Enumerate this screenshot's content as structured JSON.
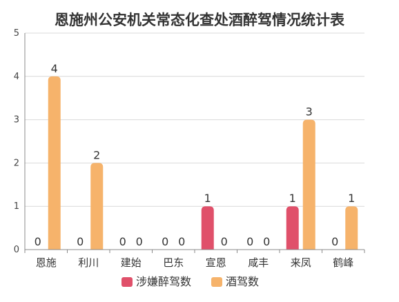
{
  "chart_data": {
    "type": "bar",
    "title": "恩施州公安机关常态化查处酒醉驾情况统计表",
    "xlabel": "",
    "ylabel": "",
    "ylim": [
      0,
      5
    ],
    "yticks": [
      "0",
      "1",
      "2",
      "3",
      "4",
      "5"
    ],
    "grid": true,
    "legend_position": "bottom",
    "categories": [
      "恩施",
      "利川",
      "建始",
      "巴东",
      "宣恩",
      "咸丰",
      "来凤",
      "鹤峰"
    ],
    "series": [
      {
        "name": "涉嫌醉驾数",
        "color": "#e0506a",
        "values": [
          0,
          0,
          0,
          0,
          1,
          0,
          1,
          0
        ]
      },
      {
        "name": "酒驾数",
        "color": "#f6b36b",
        "values": [
          4,
          2,
          0,
          0,
          0,
          0,
          3,
          1
        ]
      }
    ]
  }
}
